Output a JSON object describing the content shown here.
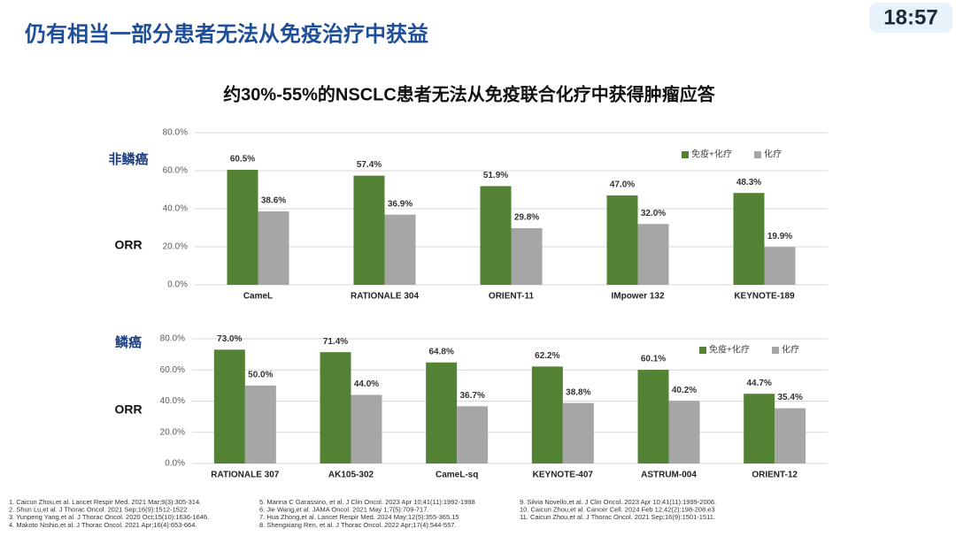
{
  "header": {
    "title": "仍有相当一部分患者无法从免疫治疗中获益",
    "clock": "18:57"
  },
  "heading": "约30%-55%的NSCLC患者无法从免疫联合化疗中获得肿瘤应答",
  "chart_data": [
    {
      "type": "bar",
      "title": "非鳞癌",
      "ylabel": "ORR",
      "categories": [
        "CameL",
        "RATIONALE 304",
        "ORIENT-11",
        "IMpower 132",
        "KEYNOTE-189"
      ],
      "series": [
        {
          "name": "免疫+化疗",
          "color": "#548235",
          "values": [
            60.5,
            57.4,
            51.9,
            47,
            48.3
          ],
          "value_labels": [
            "60.5%",
            "57.4%",
            "51.9%",
            "47.0%",
            "48.3%"
          ]
        },
        {
          "name": "化疗",
          "color": "#a6a6a6",
          "values": [
            38.6,
            36.9,
            29.8,
            32,
            19.9
          ],
          "value_labels": [
            "38.6%",
            "36.9%",
            "29.8%",
            "32.0%",
            "19.9%"
          ]
        }
      ],
      "ylim": [
        0,
        80
      ],
      "yticks": [
        {
          "value": 0,
          "label": "0.0%"
        },
        {
          "value": 20,
          "label": "20.0%"
        },
        {
          "value": 40,
          "label": "40.0%"
        },
        {
          "value": 60,
          "label": "60.0%"
        },
        {
          "value": 80,
          "label": "80.0%"
        }
      ],
      "grid": true,
      "legend": "upper right"
    },
    {
      "type": "bar",
      "title": "鳞癌",
      "ylabel": "ORR",
      "categories": [
        "RATIONALE 307",
        "AK105-302",
        "CameL-sq",
        "KEYNOTE-407",
        "ASTRUM-004",
        "ORIENT-12"
      ],
      "series": [
        {
          "name": "免疫+化疗",
          "color": "#548235",
          "values": [
            73,
            71.4,
            64.8,
            62.2,
            60.1,
            44.7
          ],
          "value_labels": [
            "73.0%",
            "71.4%",
            "64.8%",
            "62.2%",
            "60.1%",
            "44.7%"
          ]
        },
        {
          "name": "化疗",
          "color": "#a6a6a6",
          "values": [
            50,
            44,
            36.7,
            38.8,
            40.2,
            35.4
          ],
          "value_labels": [
            "50.0%",
            "44.0%",
            "36.7%",
            "38.8%",
            "40.2%",
            "35.4%"
          ]
        }
      ],
      "ylim": [
        0,
        80
      ],
      "yticks": [
        {
          "value": 0,
          "label": "0.0%"
        },
        {
          "value": 20,
          "label": "20.0%"
        },
        {
          "value": 40,
          "label": "40.0%"
        },
        {
          "value": 60,
          "label": "60.0%"
        },
        {
          "value": 80,
          "label": "80.0%"
        }
      ],
      "grid": true,
      "legend": "upper right"
    }
  ],
  "references": [
    [
      "1. Caicun Zhou,et al. Lancet Respir Med. 2021 Mar;9(3):305-314.",
      "2. Shun Lu,et al. J Thorac Oncol. 2021 Sep;16(9):1512-1522",
      "3. Yunpeng Yang,et al. J Thorac Oncol. 2020 Oct;15(10):1636-1646.",
      "4. Makoto Nishio,et al. J Thorac Oncol. 2021 Apr;16(4):653-664."
    ],
    [
      "5. Marina C Garassino, et al. J Clin Oncol. 2023 Apr 10;41(11):1992-1998",
      "6. Jie Wang,et al. JAMA Oncol. 2021 May 1;7(5):709-717.",
      "7. Hua Zhong,et al. Lancet Respir Med. 2024 May;12(5):355-365.15",
      "8. Shengxiang Ren, et al. J Thorac Oncol. 2022 Apr;17(4):544-557."
    ],
    [
      "9. Silvia Novello,et al. J Clin Oncol. 2023 Apr 10;41(11):1999-2006.",
      "10. Caicun Zhou,et al. Cancer Cell. 2024 Feb 12;42(2):198-208.e3",
      "11. Caicun Zhou,et al. J Thorac Oncol. 2021 Sep;16(9):1501-1511."
    ]
  ]
}
